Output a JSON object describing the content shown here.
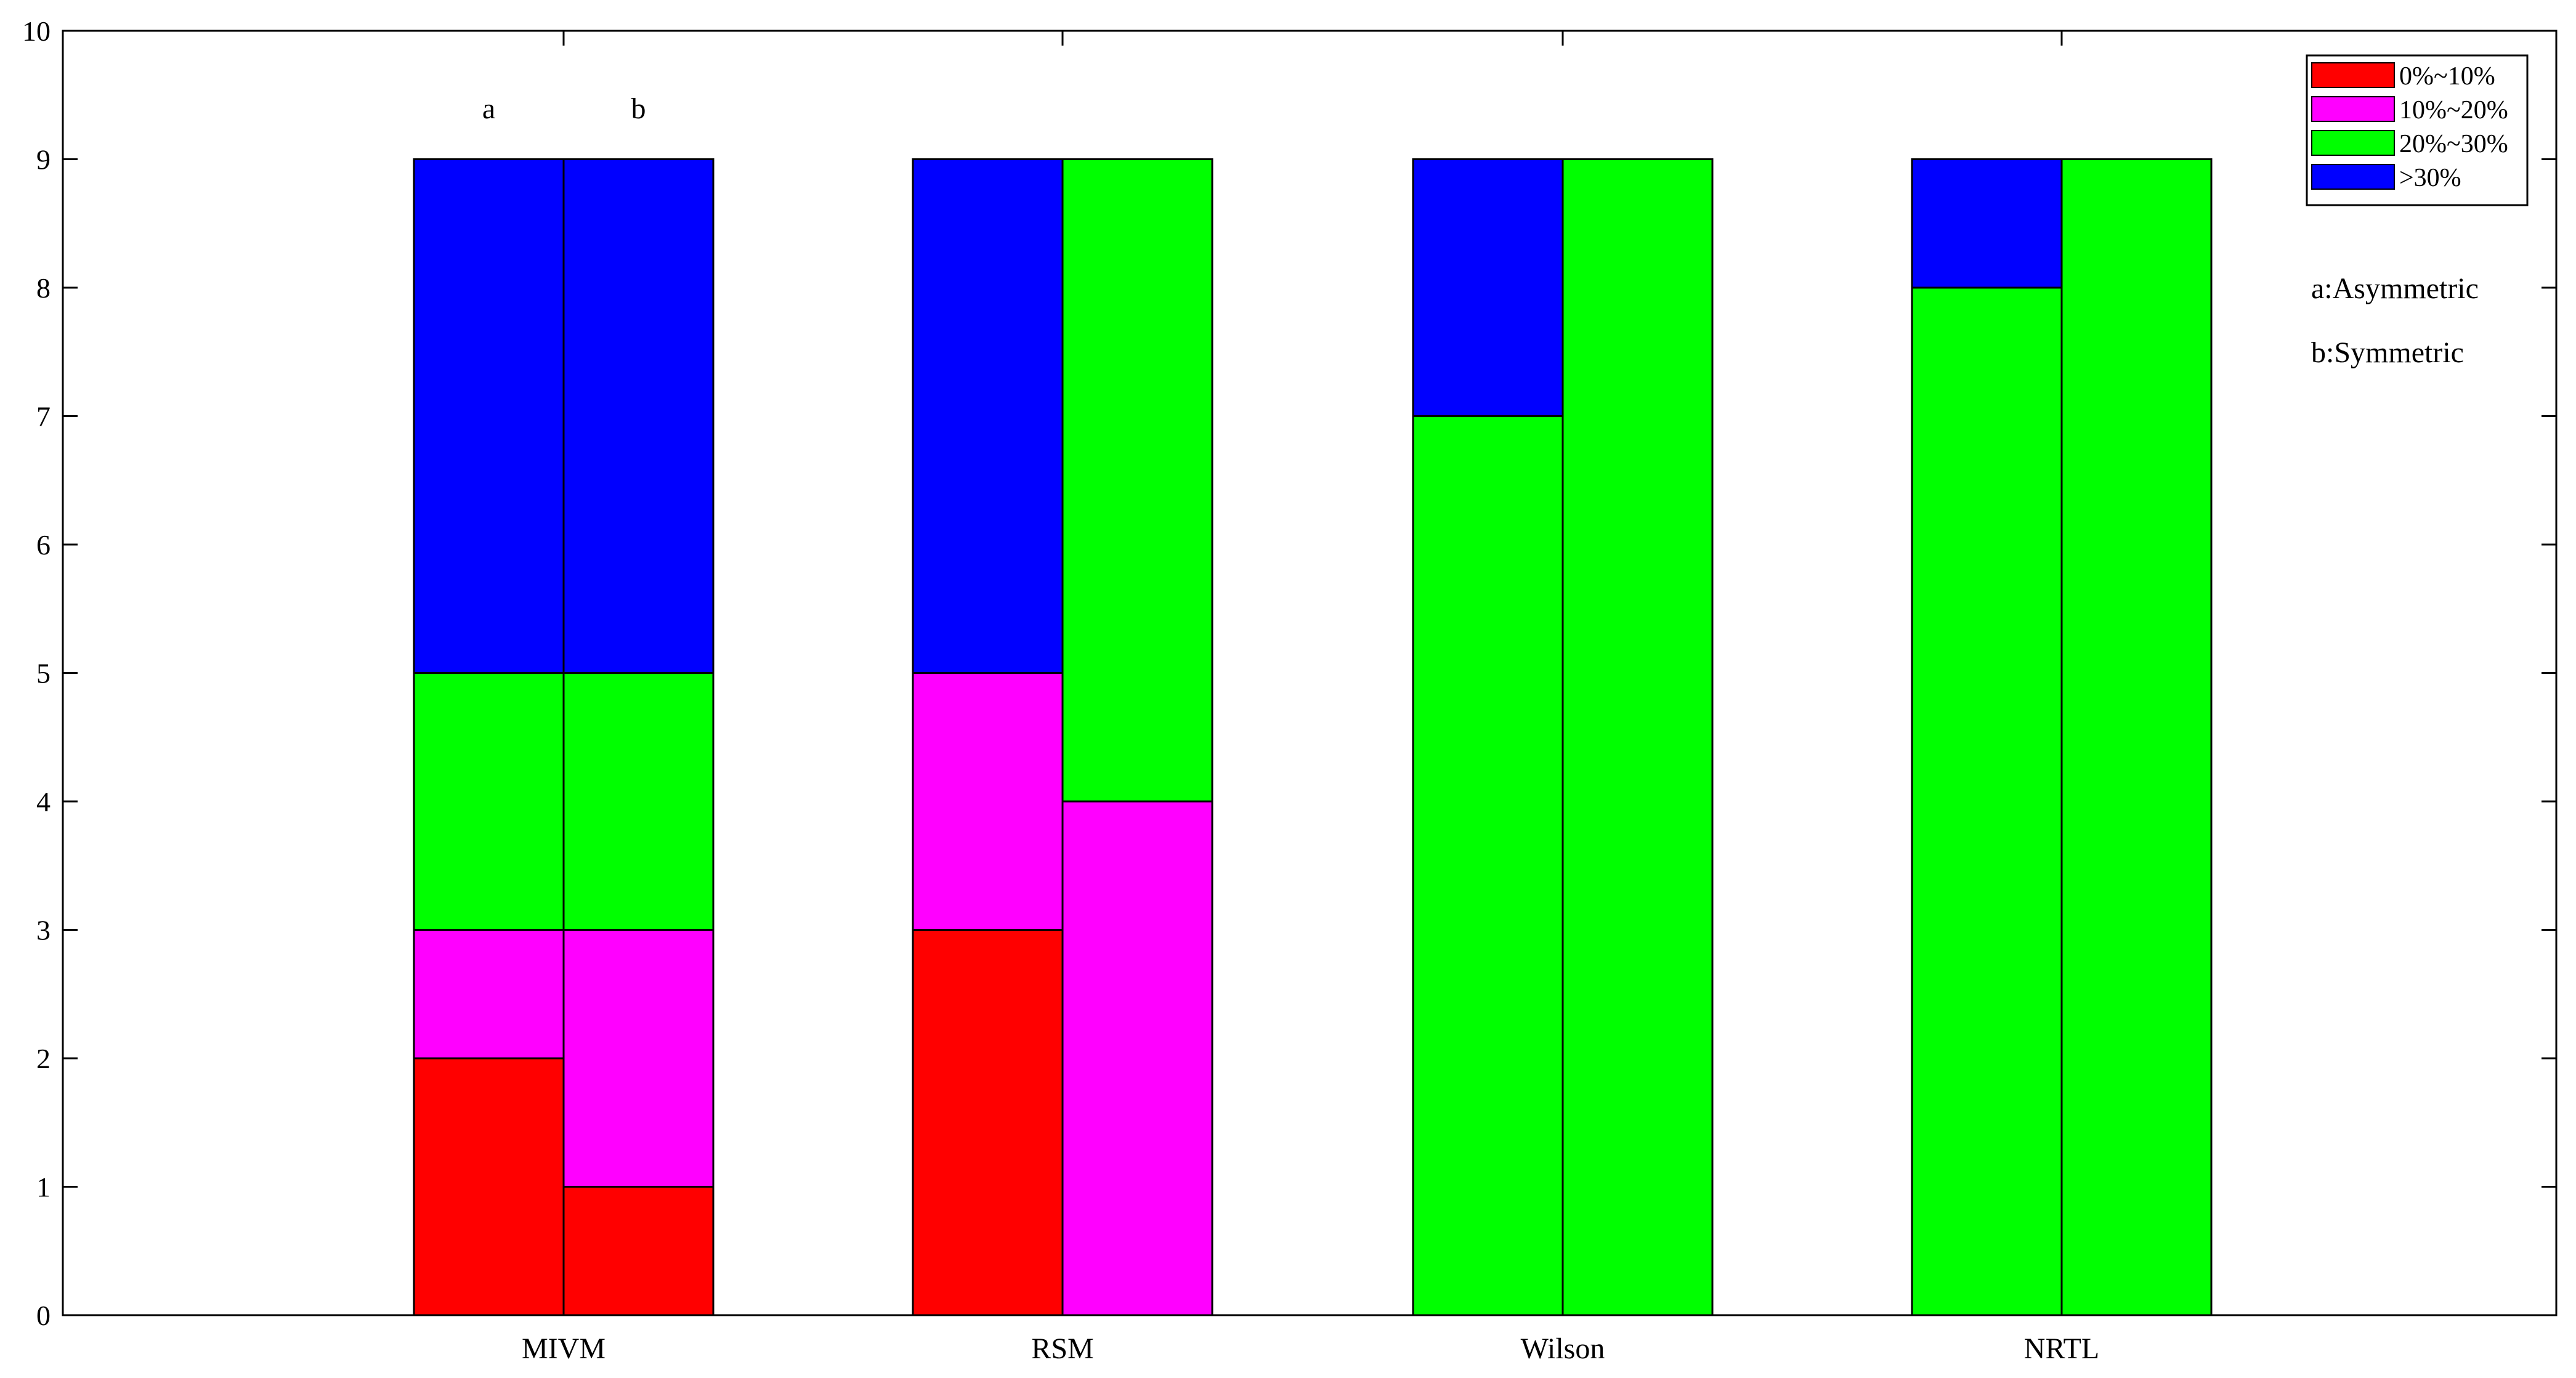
{
  "chart_data": {
    "type": "bar",
    "stacked": true,
    "grouped": true,
    "categories": [
      "MIVM",
      "RSM",
      "Wilson",
      "NRTL"
    ],
    "subgroups": [
      "a",
      "b"
    ],
    "subgroup_top_labels": [
      "a",
      "b"
    ],
    "series": [
      {
        "name": "0%~10%",
        "color": "#ff0000",
        "values": {
          "a": [
            2,
            3,
            0,
            0
          ],
          "b": [
            1,
            0,
            0,
            0
          ]
        }
      },
      {
        "name": "10%~20%",
        "color": "#ff00ff",
        "values": {
          "a": [
            1,
            2,
            0,
            0
          ],
          "b": [
            2,
            4,
            0,
            0
          ]
        }
      },
      {
        "name": "20%~30%",
        "color": "#00ff00",
        "values": {
          "a": [
            2,
            0,
            7,
            8
          ],
          "b": [
            2,
            5,
            9,
            9
          ]
        }
      },
      {
        "name": ">30%",
        "color": "#0000ff",
        "values": {
          "a": [
            4,
            4,
            2,
            1
          ],
          "b": [
            4,
            0,
            0,
            0
          ]
        }
      }
    ],
    "y_ticks": [
      0,
      1,
      2,
      3,
      4,
      5,
      6,
      7,
      8,
      9,
      10
    ],
    "ylim": [
      0,
      10
    ],
    "xlabel": "",
    "ylabel": "",
    "title": "",
    "grid": false,
    "legend_position": "top-right",
    "annotations": [
      "a:Asymmetric",
      "b:Symmetric"
    ]
  }
}
